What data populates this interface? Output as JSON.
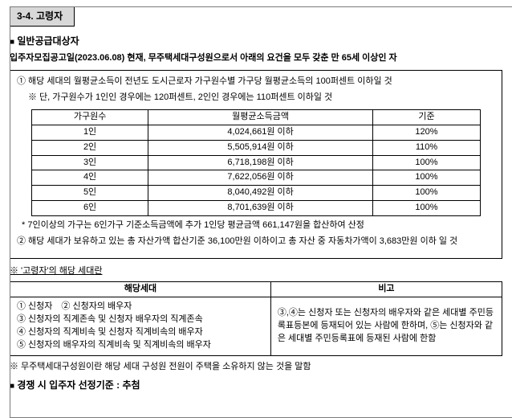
{
  "section_tag": "3-4. 고령자",
  "h1_prefix": "■",
  "h1": "일반공급대상자",
  "subline": "입주자모집공고일(2023.06.08) 현재, 무주택세대구성원으로서 아래의 요건을 모두 갖춘 만 65세 이상인 자",
  "box1_line1": "① 해당 세대의 월평균소득이 전년도 도시근로자 가구원수별 가구당 월평균소득의 100퍼센트 이하일 것",
  "box1_note": "※ 단, 가구원수가 1인인 경우에는 120퍼센트, 2인인 경우에는 110퍼센트 이하일 것",
  "t1": {
    "headers": [
      "가구원수",
      "월평균소득금액",
      "기준"
    ],
    "rows": [
      [
        "1인",
        "4,024,661원 이하",
        "120%"
      ],
      [
        "2인",
        "5,505,914원 이하",
        "110%"
      ],
      [
        "3인",
        "6,718,198원 이하",
        "100%"
      ],
      [
        "4인",
        "7,622,056원 이하",
        "100%"
      ],
      [
        "5인",
        "8,040,492원 이하",
        "100%"
      ],
      [
        "6인",
        "8,701,639원 이하",
        "100%"
      ]
    ]
  },
  "box1_foot1": "* 7인이상의 가구는 6인가구 기준소득금액에 추가 1인당 평균금액 661,147원을 합산하여 산정",
  "box1_line2": "② 해당 세대가 보유하고 있는 총 자산가액 합산기준 36,100만원 이하이고 총 자산 중 자동차가액이 3,683만원 이하 일 것",
  "sub2": "※ '고령자'의 해당 세대란",
  "t2": {
    "h1": "해당세대",
    "h2": "비고",
    "left": "① 신청자　② 신청자의 배우자\n③ 신청자의 직계존속 및 신청자 배우자의 직계존속\n④ 신청자의 직계비속 및 신청자 직계비속의 배우자\n⑤ 신청자의 배우자의 직계비속 및 직계비속의 배우자",
    "right": "③,④는 신청자 또는 신청자의 배우자와 같은 세대별 주민등록표등본에 등재되어 있는 사람에 한하며, ⑤는 신청자와 같은 세대별 주민등록표에 등재된 사람에 한함"
  },
  "sub3": "※ 무주택세대구성원이란 해당 세대 구성원 전원이 주택을 소유하지 않는 것을 말함",
  "final_prefix": "■",
  "final": "경쟁 시 입주자 선정기준  :  추첨"
}
